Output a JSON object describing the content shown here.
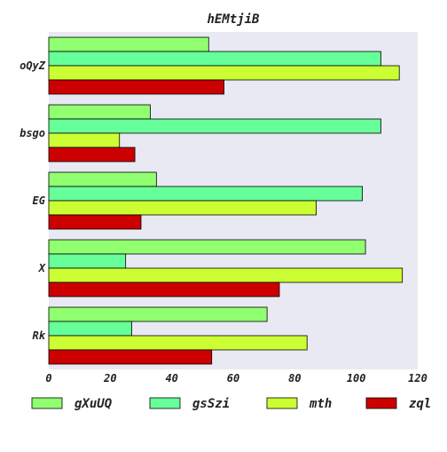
{
  "chart_data": {
    "type": "bar",
    "orientation": "horizontal",
    "title": "hEMtjiB",
    "xlabel": "",
    "ylabel": "",
    "categories": [
      "oQyZ",
      "bsgo",
      "EG",
      "X",
      "Rk"
    ],
    "xlim": [
      0,
      120
    ],
    "xticks": [
      0,
      20,
      40,
      60,
      80,
      100,
      120
    ],
    "grid": false,
    "legend_position": "bottom",
    "series": [
      {
        "name": "gXuUQ",
        "color": "#90ff70",
        "values": [
          52,
          33,
          35,
          103,
          71
        ]
      },
      {
        "name": "gsSzi",
        "color": "#66ff99",
        "values": [
          108,
          108,
          102,
          25,
          27
        ]
      },
      {
        "name": "mth",
        "color": "#ccff33",
        "values": [
          114,
          23,
          87,
          115,
          84
        ]
      },
      {
        "name": "zql",
        "color": "#cc0000",
        "values": [
          57,
          28,
          30,
          75,
          53
        ]
      }
    ]
  }
}
